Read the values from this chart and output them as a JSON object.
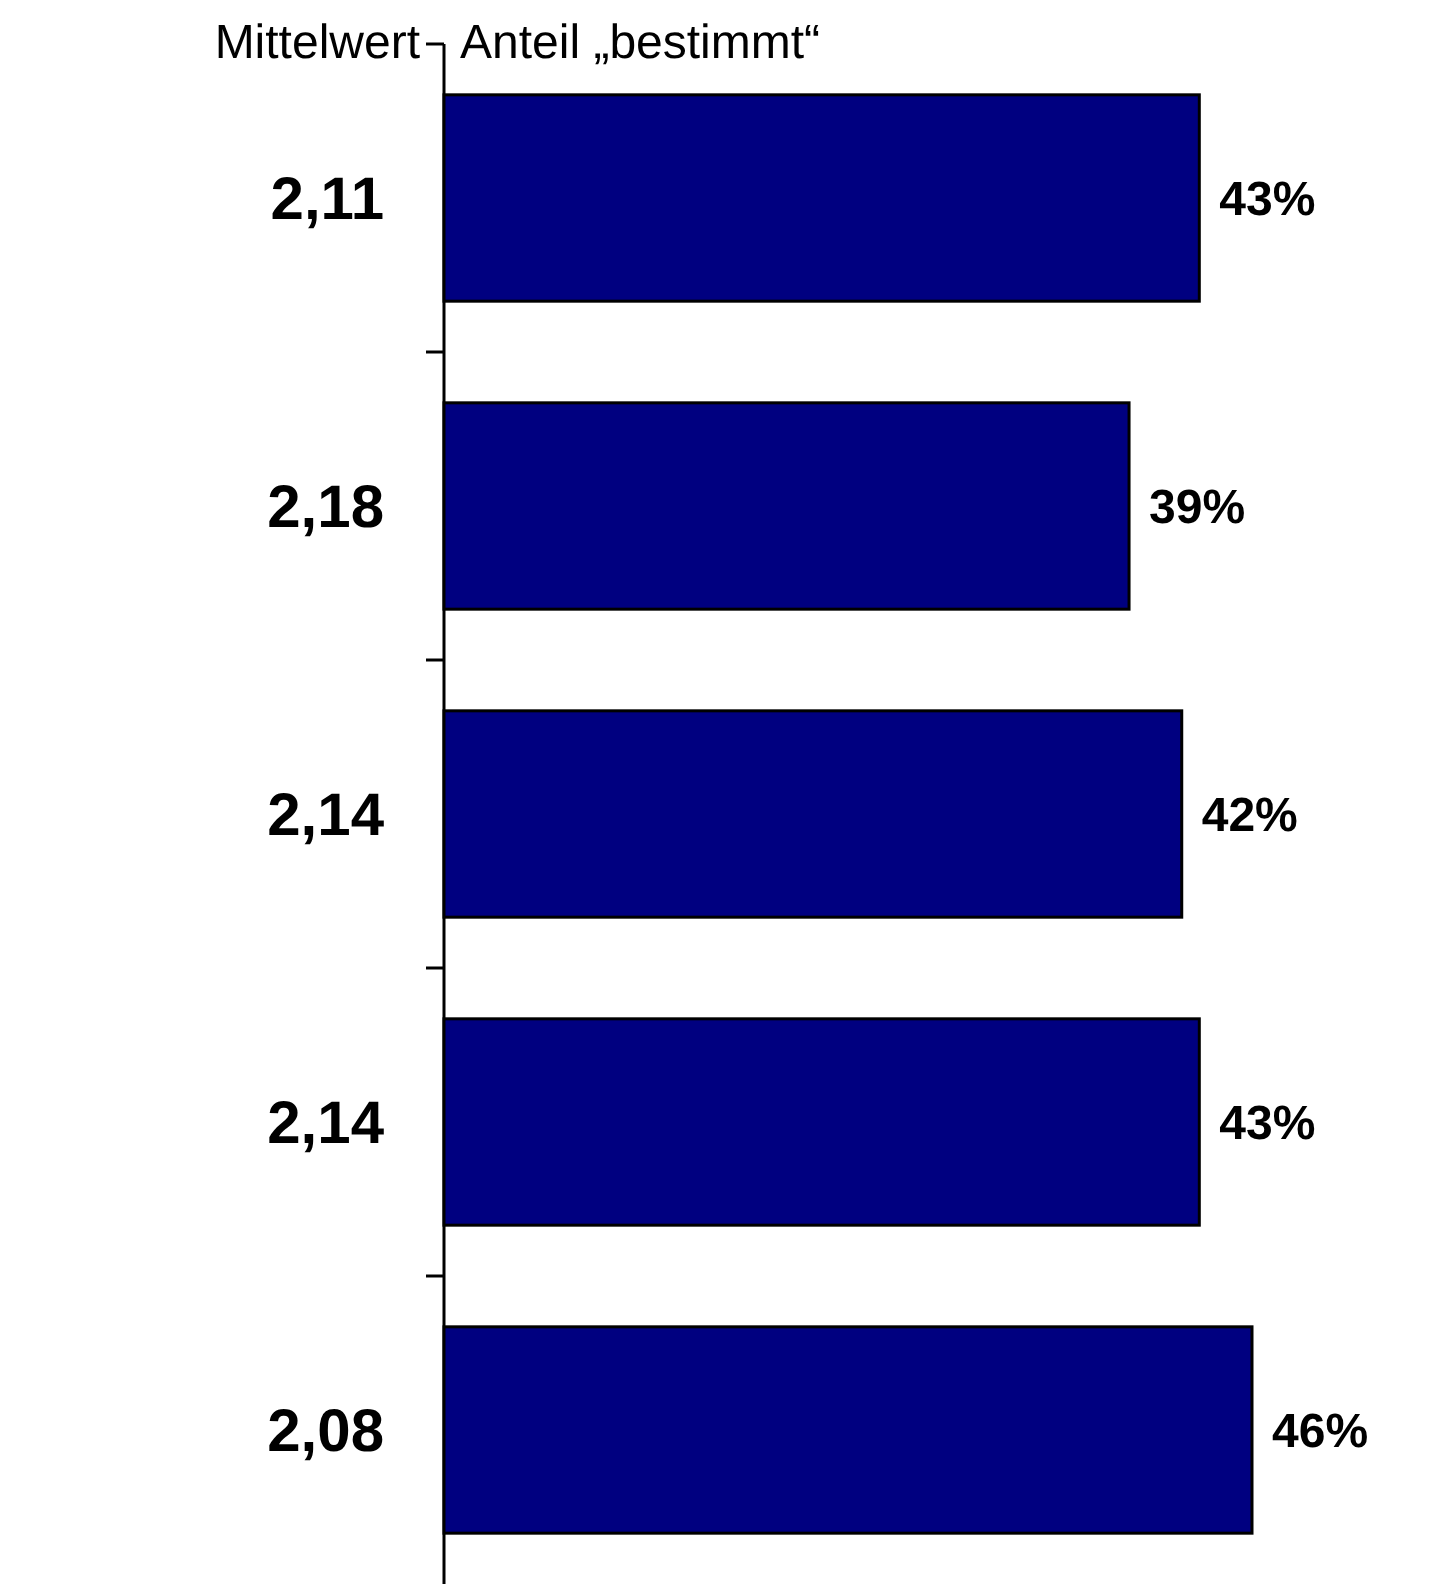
{
  "chart_data": {
    "type": "bar",
    "orientation": "horizontal",
    "ylabel": "Mittelwert",
    "title": "Anteil „bestimmt“",
    "categories": [
      "2,11",
      "2,18",
      "2,14",
      "2,14",
      "2,08"
    ],
    "values": [
      43,
      39,
      42,
      43,
      46
    ],
    "value_labels": [
      "43%",
      "39%",
      "42%",
      "43%",
      "46%"
    ],
    "color": "#000080"
  }
}
